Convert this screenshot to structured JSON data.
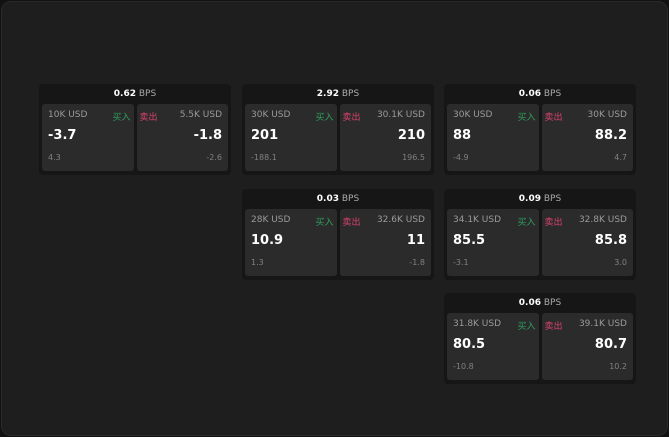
{
  "colors": {
    "buy": "#2f9e5c",
    "sell": "#d8416d"
  },
  "unit": "BPS",
  "buy_label": "买入",
  "sell_label": "卖出",
  "cards": [
    {
      "spread": "0.62",
      "buy": {
        "qty": "10K USD",
        "price": "-3.7",
        "change": "4.3"
      },
      "sell": {
        "qty": "5.5K USD",
        "price": "-1.8",
        "change": "-2.6"
      }
    },
    {
      "spread": "2.92",
      "buy": {
        "qty": "30K USD",
        "price": "201",
        "change": "-188.1"
      },
      "sell": {
        "qty": "30.1K USD",
        "price": "210",
        "change": "196.5"
      }
    },
    {
      "spread": "0.06",
      "buy": {
        "qty": "30K USD",
        "price": "88",
        "change": "-4.9"
      },
      "sell": {
        "qty": "30K USD",
        "price": "88.2",
        "change": "4.7"
      }
    },
    {
      "spread": "0.03",
      "buy": {
        "qty": "28K USD",
        "price": "10.9",
        "change": "1.3"
      },
      "sell": {
        "qty": "32.6K USD",
        "price": "11",
        "change": "-1.8"
      }
    },
    {
      "spread": "0.09",
      "buy": {
        "qty": "34.1K USD",
        "price": "85.5",
        "change": "-3.1"
      },
      "sell": {
        "qty": "32.8K USD",
        "price": "85.8",
        "change": "3.0"
      }
    },
    {
      "spread": "0.06",
      "buy": {
        "qty": "31.8K USD",
        "price": "80.5",
        "change": "-10.8"
      },
      "sell": {
        "qty": "39.1K USD",
        "price": "80.7",
        "change": "10.2"
      }
    }
  ]
}
